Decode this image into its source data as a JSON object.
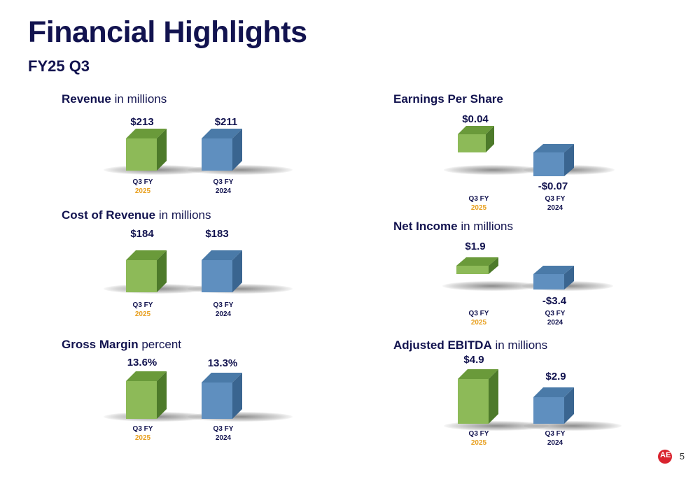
{
  "header": {
    "title": "Financial Highlights",
    "subtitle": "FY25 Q3"
  },
  "colors": {
    "current": "#8dba58",
    "prior": "#5f8fbf",
    "year_current": "#e8a020",
    "year_prior": "#12134f"
  },
  "panels": {
    "revenue": {
      "title_bold": "Revenue",
      "title_unit": "in millions",
      "bars": [
        {
          "label": "$213",
          "value": 213,
          "cat_q": "Q3 FY",
          "cat_y": "2025"
        },
        {
          "label": "$211",
          "value": 211,
          "cat_q": "Q3 FY",
          "cat_y": "2024"
        }
      ]
    },
    "cost_of_revenue": {
      "title_bold": "Cost of Revenue",
      "title_unit": "in millions",
      "bars": [
        {
          "label": "$184",
          "value": 184,
          "cat_q": "Q3 FY",
          "cat_y": "2025"
        },
        {
          "label": "$183",
          "value": 183,
          "cat_q": "Q3 FY",
          "cat_y": "2024"
        }
      ]
    },
    "gross_margin": {
      "title_bold": "Gross Margin",
      "title_unit": "percent",
      "bars": [
        {
          "label": "13.6%",
          "value": 13.6,
          "cat_q": "Q3 FY",
          "cat_y": "2025"
        },
        {
          "label": "13.3%",
          "value": 13.3,
          "cat_q": "Q3 FY",
          "cat_y": "2024"
        }
      ]
    },
    "eps": {
      "title_bold": "Earnings Per Share",
      "title_unit": "",
      "bars": [
        {
          "label": "$0.04",
          "value": 0.04,
          "cat_q": "Q3 FY",
          "cat_y": "2025"
        },
        {
          "label": "-$0.07",
          "value": -0.07,
          "cat_q": "Q3 FY",
          "cat_y": "2024"
        }
      ]
    },
    "net_income": {
      "title_bold": "Net Income",
      "title_unit": "in millions",
      "bars": [
        {
          "label": "$1.9",
          "value": 1.9,
          "cat_q": "Q3 FY",
          "cat_y": "2025"
        },
        {
          "label": "-$3.4",
          "value": -3.4,
          "cat_q": "Q3 FY",
          "cat_y": "2024"
        }
      ]
    },
    "adj_ebitda": {
      "title_bold": "Adjusted EBITDA",
      "title_unit": "in millions",
      "bars": [
        {
          "label": "$4.9",
          "value": 4.9,
          "cat_q": "Q3 FY",
          "cat_y": "2025"
        },
        {
          "label": "$2.9",
          "value": 2.9,
          "cat_q": "Q3 FY",
          "cat_y": "2024"
        }
      ]
    }
  },
  "footer": {
    "page_number": "5",
    "logo_text": "AE",
    "logo_icon": "company-logo-icon"
  }
}
